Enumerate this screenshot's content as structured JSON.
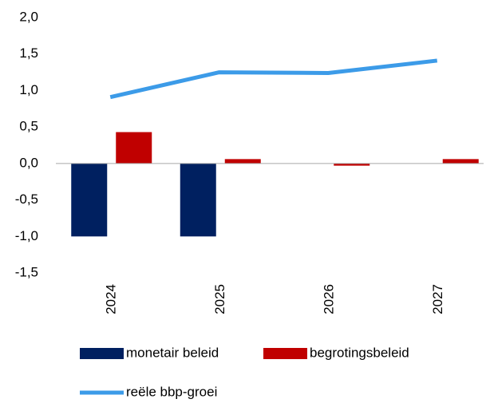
{
  "chart_data": {
    "type": "bar",
    "categories": [
      "2024",
      "2025",
      "2026",
      "2027"
    ],
    "series": [
      {
        "name": "monetair beleid",
        "color": "#002060",
        "values": [
          -1.0,
          -1.0,
          null,
          null
        ]
      },
      {
        "name": "begrotingsbeleid",
        "color": "#c00000",
        "values": [
          0.43,
          0.06,
          -0.03,
          0.06
        ]
      },
      {
        "name": "reële bbp-groei",
        "color": "#3c9be8",
        "type": "line",
        "values": [
          0.91,
          1.25,
          1.24,
          1.41
        ]
      }
    ],
    "ylim": [
      -1.5,
      2.0
    ],
    "yticks": [
      {
        "value": 2.0,
        "label": "2,0"
      },
      {
        "value": 1.5,
        "label": "1,5"
      },
      {
        "value": 1.0,
        "label": "1,0"
      },
      {
        "value": 0.5,
        "label": "0,5"
      },
      {
        "value": 0.0,
        "label": "0,0"
      },
      {
        "value": -0.5,
        "label": "-0,5"
      },
      {
        "value": -1.0,
        "label": "-1,0"
      },
      {
        "value": -1.5,
        "label": "-1,5"
      }
    ],
    "grid": false
  }
}
